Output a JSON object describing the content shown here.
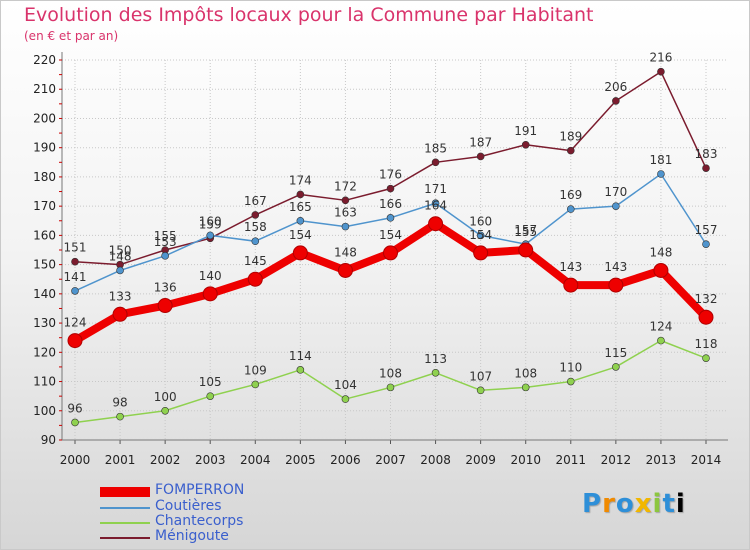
{
  "chart_data": {
    "type": "line",
    "title": "Evolution des Impôts locaux pour la Commune par Habitant",
    "subtitle": "(en € et par an)",
    "x": [
      "2000",
      "2001",
      "2002",
      "2003",
      "2004",
      "2005",
      "2006",
      "2007",
      "2008",
      "2009",
      "2010",
      "2011",
      "2012",
      "2013",
      "2014"
    ],
    "ylim": [
      90,
      220
    ],
    "yticks": [
      90,
      100,
      110,
      120,
      130,
      140,
      150,
      160,
      170,
      180,
      190,
      200,
      210,
      220
    ],
    "grid": true,
    "series": [
      {
        "name": "FOMPERRON",
        "color": "#ee0000",
        "values": [
          124,
          133,
          136,
          140,
          145,
          154,
          148,
          154,
          164,
          154,
          155,
          143,
          143,
          148,
          132
        ]
      },
      {
        "name": "Coutières",
        "color": "#4f94cd",
        "values": [
          141,
          148,
          153,
          160,
          158,
          165,
          163,
          166,
          171,
          160,
          157,
          169,
          170,
          181,
          157
        ]
      },
      {
        "name": "Chantecorps",
        "color": "#8fd14f",
        "values": [
          96,
          98,
          100,
          105,
          109,
          114,
          104,
          108,
          113,
          107,
          108,
          110,
          115,
          124,
          118
        ]
      },
      {
        "name": "Ménigoute",
        "color": "#7b1c2e",
        "values": [
          151,
          150,
          155,
          159,
          167,
          174,
          172,
          176,
          185,
          187,
          191,
          189,
          206,
          216,
          183
        ]
      }
    ]
  },
  "logo": {
    "letters": [
      "P",
      "r",
      "o",
      "x",
      "i",
      "t",
      "i"
    ]
  }
}
